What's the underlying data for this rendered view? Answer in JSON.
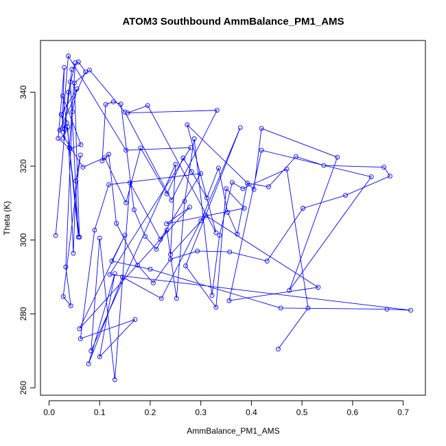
{
  "chart_data": {
    "type": "scatter",
    "title": "ATOM3 Southbound AmmBalance_PM1_AMS",
    "xlabel": "AmmBalance_PM1_AMS",
    "ylabel": "Theta (K)",
    "xlim": [
      -0.017,
      0.744
    ],
    "ylim": [
      258,
      354
    ],
    "x_ticks": [
      0.0,
      0.1,
      0.2,
      0.3,
      0.4,
      0.5,
      0.6,
      0.7
    ],
    "x_tick_labels": [
      "0.0",
      "0.1",
      "0.2",
      "0.3",
      "0.4",
      "0.5",
      "0.6",
      "0.7"
    ],
    "y_ticks": [
      260,
      280,
      300,
      320,
      340
    ],
    "y_tick_labels": [
      "260",
      "280",
      "300",
      "320",
      "340"
    ],
    "grid": false,
    "color": "#0000ff",
    "series": [
      {
        "points": [
          [
            0.013,
            301.2
          ],
          [
            0.038,
            340.0
          ],
          [
            0.052,
            348.0
          ],
          [
            0.04,
            325.0
          ],
          [
            0.06,
            300.8
          ],
          [
            0.05,
            342.5
          ],
          [
            0.08,
            346.0
          ],
          [
            0.15,
            334.6
          ],
          [
            0.242,
            310.8
          ],
          [
            0.332,
            335.1
          ],
          [
            0.155,
            334.4
          ],
          [
            0.195,
            336.4
          ],
          [
            0.33,
            302.0
          ],
          [
            0.273,
            331.2
          ],
          [
            0.405,
            313.7
          ],
          [
            0.42,
            330.2
          ],
          [
            0.57,
            322.4
          ],
          [
            0.475,
            286.4
          ],
          [
            0.637,
            317.1
          ],
          [
            0.42,
            324.3
          ],
          [
            0.356,
            283.6
          ],
          [
            0.532,
            287.2
          ],
          [
            0.31,
            306.6
          ],
          [
            0.24,
            296.1
          ],
          [
            0.25,
            320.5
          ],
          [
            0.083,
            270.0
          ],
          [
            0.1,
            300.5
          ],
          [
            0.13,
            262.2
          ],
          [
            0.16,
            315.5
          ],
          [
            0.22,
            300.2
          ],
          [
            0.3,
            318.0
          ],
          [
            0.118,
            315.0
          ],
          [
            0.09,
            302.7
          ],
          [
            0.062,
            273.3
          ],
          [
            0.17,
            278.5
          ],
          [
            0.1,
            268.4
          ],
          [
            0.13,
            290.9
          ],
          [
            0.078,
            266.5
          ],
          [
            0.145,
            290.0
          ],
          [
            0.222,
            284.2
          ],
          [
            0.3,
            305.2
          ],
          [
            0.378,
            330.4
          ],
          [
            0.27,
            293.0
          ],
          [
            0.33,
            281.8
          ],
          [
            0.35,
            313.9
          ],
          [
            0.386,
            308.6
          ],
          [
            0.232,
            304.4
          ],
          [
            0.278,
            308.9
          ],
          [
            0.06,
            276.0
          ],
          [
            0.15,
            301.3
          ],
          [
            0.124,
            294.3
          ],
          [
            0.2,
            292.1
          ],
          [
            0.458,
            281.6
          ],
          [
            0.668,
            281.3
          ],
          [
            0.715,
            281.0
          ],
          [
            0.12,
            290.7
          ],
          [
            0.28,
            325.0
          ],
          [
            0.152,
            324.3
          ],
          [
            0.038,
            349.8
          ],
          [
            0.026,
            330.1
          ],
          [
            0.03,
            346.7
          ],
          [
            0.018,
            327.5
          ],
          [
            0.042,
            324.7
          ],
          [
            0.063,
            325.8
          ],
          [
            0.027,
            339.0
          ],
          [
            0.035,
            331.7
          ],
          [
            0.058,
            300.8
          ],
          [
            0.042,
            342.8
          ],
          [
            0.031,
            330.0
          ],
          [
            0.024,
            334.0
          ],
          [
            0.055,
            340.9
          ],
          [
            0.046,
            334.7
          ],
          [
            0.033,
            292.7
          ],
          [
            0.043,
            282.2
          ],
          [
            0.028,
            284.7
          ],
          [
            0.062,
            323.0
          ],
          [
            0.053,
            316.0
          ],
          [
            0.048,
            296.4
          ],
          [
            0.037,
            330.6
          ],
          [
            0.028,
            327.6
          ],
          [
            0.045,
            346.2
          ],
          [
            0.058,
            348.2
          ],
          [
            0.072,
            345.5
          ],
          [
            0.021,
            329.7
          ],
          [
            0.067,
            319.7
          ],
          [
            0.11,
            322.3
          ],
          [
            0.152,
            310.1
          ],
          [
            0.181,
            324.9
          ],
          [
            0.233,
            312.5
          ],
          [
            0.265,
            322.2
          ],
          [
            0.282,
            318.5
          ],
          [
            0.312,
            311.4
          ],
          [
            0.335,
            319.5
          ],
          [
            0.353,
            307.5
          ],
          [
            0.372,
            301.6
          ],
          [
            0.392,
            315.4
          ],
          [
            0.434,
            314.4
          ],
          [
            0.488,
            322.6
          ],
          [
            0.543,
            320.2
          ],
          [
            0.662,
            319.7
          ],
          [
            0.674,
            317.3
          ],
          [
            0.586,
            312.1
          ],
          [
            0.502,
            308.6
          ],
          [
            0.431,
            294.3
          ],
          [
            0.357,
            296.8
          ],
          [
            0.293,
            297.0
          ],
          [
            0.24,
            294.8
          ],
          [
            0.206,
            288.4
          ],
          [
            0.175,
            293.2
          ],
          [
            0.133,
            304.5
          ],
          [
            0.118,
            323.2
          ],
          [
            0.105,
            321.4
          ],
          [
            0.112,
            336.7
          ],
          [
            0.127,
            337.4
          ],
          [
            0.142,
            336.8
          ],
          [
            0.168,
            308.2
          ],
          [
            0.19,
            301.0
          ],
          [
            0.212,
            297.5
          ],
          [
            0.233,
            302.7
          ],
          [
            0.252,
            284.2
          ],
          [
            0.268,
            310.5
          ],
          [
            0.287,
            327.4
          ],
          [
            0.322,
            285.0
          ],
          [
            0.337,
            301.3
          ],
          [
            0.362,
            315.6
          ],
          [
            0.383,
            313.9
          ],
          [
            0.47,
            319.2
          ],
          [
            0.512,
            281.6
          ],
          [
            0.453,
            270.5
          ]
        ]
      }
    ]
  }
}
